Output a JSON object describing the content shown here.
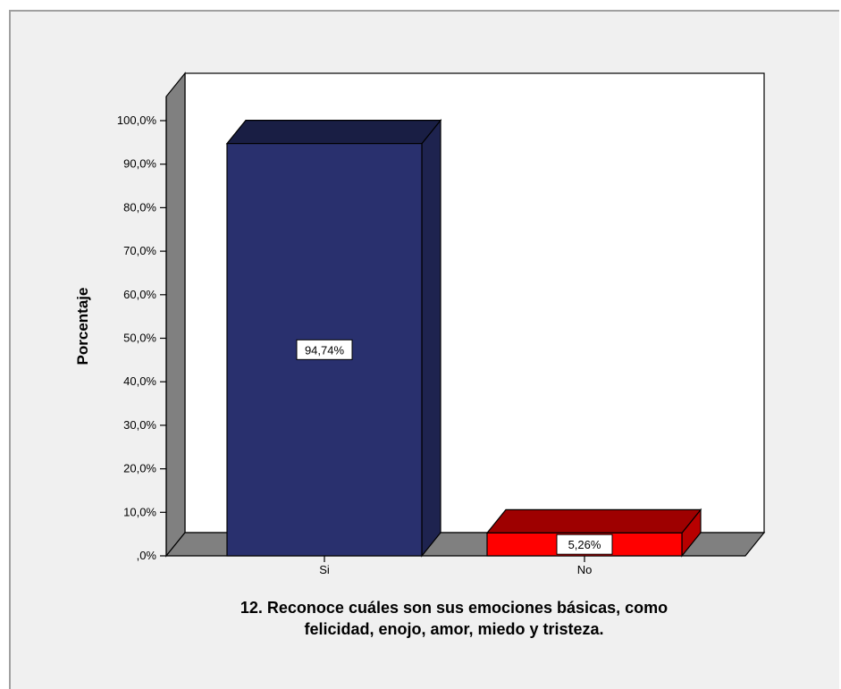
{
  "chart_data": {
    "type": "bar",
    "categories": [
      "Si",
      "No"
    ],
    "values": [
      94.74,
      5.26
    ],
    "data_labels": [
      "94,74%",
      "5,26%"
    ],
    "ylabel": "Porcentaje",
    "xlabel": [
      "12. Reconoce cuáles son sus emociones básicas, como",
      "felicidad, enojo, amor, miedo y tristeza."
    ],
    "ylim": [
      0,
      100
    ],
    "yticks": [
      ",0%",
      "10,0%",
      "20,0%",
      "30,0%",
      "40,0%",
      "50,0%",
      "60,0%",
      "70,0%",
      "80,0%",
      "90,0%",
      "100,0%"
    ],
    "grid": false,
    "three_d": true,
    "colors": {
      "Si": "#29306e",
      "No": "#ff0000",
      "plot_background": "#ffffff",
      "panel_background": "#f0f0f0",
      "wall": "#808080"
    }
  }
}
